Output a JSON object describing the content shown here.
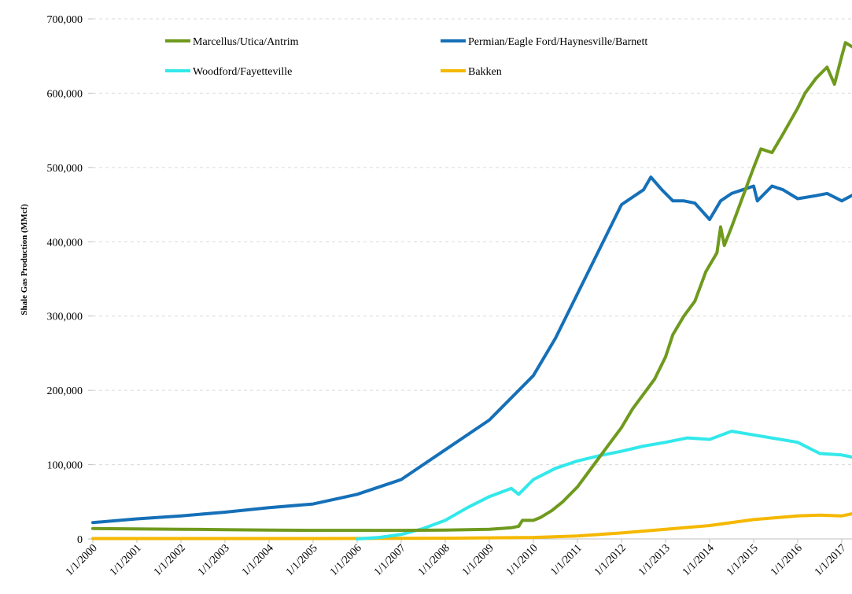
{
  "chart_data": {
    "type": "line",
    "title": "",
    "xlabel": "",
    "ylabel": "Shale Gas Production  (MMcf)",
    "ylim": [
      0,
      700000
    ],
    "yticks": [
      0,
      100000,
      200000,
      300000,
      400000,
      500000,
      600000,
      700000
    ],
    "ytick_labels": [
      "0",
      "100,000",
      "200,000",
      "300,000",
      "400,000",
      "500,000",
      "600,000",
      "700,000"
    ],
    "xlim": [
      "2000-01",
      "2017-04"
    ],
    "xticks": [
      "2000-01",
      "2001-01",
      "2002-01",
      "2003-01",
      "2004-01",
      "2005-01",
      "2006-01",
      "2007-01",
      "2008-01",
      "2009-01",
      "2010-01",
      "2011-01",
      "2012-01",
      "2013-01",
      "2014-01",
      "2015-01",
      "2016-01",
      "2017-01"
    ],
    "xtick_labels": [
      "1/1/2000",
      "1/1/2001",
      "1/1/2002",
      "1/1/2003",
      "1/1/2004",
      "1/1/2005",
      "1/1/2006",
      "1/1/2007",
      "1/1/2008",
      "1/1/2009",
      "1/1/2010",
      "1/1/2011",
      "1/1/2012",
      "1/1/2013",
      "1/1/2014",
      "1/1/2015",
      "1/1/2016",
      "1/1/2017"
    ],
    "grid": "horizontal dashed",
    "legend_placement": "top",
    "series": [
      {
        "name": "Marcellus/Utica/Antrim",
        "color": "#6f9a1e",
        "points": [
          [
            "2000-01",
            14000
          ],
          [
            "2002-01",
            13000
          ],
          [
            "2003-01",
            12500
          ],
          [
            "2004-01",
            12000
          ],
          [
            "2005-01",
            11500
          ],
          [
            "2006-01",
            11500
          ],
          [
            "2007-01",
            11500
          ],
          [
            "2008-01",
            12000
          ],
          [
            "2009-01",
            13000
          ],
          [
            "2009-07",
            15000
          ],
          [
            "2009-09",
            17000
          ],
          [
            "2009-10",
            25000
          ],
          [
            "2010-01",
            25000
          ],
          [
            "2010-03",
            29000
          ],
          [
            "2010-06",
            38000
          ],
          [
            "2010-09",
            50000
          ],
          [
            "2011-01",
            70000
          ],
          [
            "2011-04",
            90000
          ],
          [
            "2011-07",
            110000
          ],
          [
            "2011-10",
            130000
          ],
          [
            "2012-01",
            150000
          ],
          [
            "2012-04",
            175000
          ],
          [
            "2012-07",
            195000
          ],
          [
            "2012-10",
            215000
          ],
          [
            "2013-01",
            245000
          ],
          [
            "2013-03",
            275000
          ],
          [
            "2013-06",
            300000
          ],
          [
            "2013-09",
            320000
          ],
          [
            "2013-12",
            360000
          ],
          [
            "2014-03",
            385000
          ],
          [
            "2014-04",
            420000
          ],
          [
            "2014-05",
            395000
          ],
          [
            "2014-07",
            420000
          ],
          [
            "2014-10",
            460000
          ],
          [
            "2015-01",
            500000
          ],
          [
            "2015-03",
            525000
          ],
          [
            "2015-06",
            520000
          ],
          [
            "2015-09",
            545000
          ],
          [
            "2016-01",
            580000
          ],
          [
            "2016-03",
            600000
          ],
          [
            "2016-06",
            620000
          ],
          [
            "2016-09",
            635000
          ],
          [
            "2016-11",
            612000
          ],
          [
            "2017-01",
            650000
          ],
          [
            "2017-02",
            668000
          ],
          [
            "2017-04",
            662000
          ]
        ]
      },
      {
        "name": "Permian/Eagle Ford/Haynesville/Barnett",
        "color": "#1570b8",
        "points": [
          [
            "2000-01",
            22000
          ],
          [
            "2001-01",
            27000
          ],
          [
            "2002-01",
            31000
          ],
          [
            "2003-01",
            36000
          ],
          [
            "2004-01",
            42000
          ],
          [
            "2005-01",
            47000
          ],
          [
            "2006-01",
            60000
          ],
          [
            "2007-01",
            80000
          ],
          [
            "2008-01",
            120000
          ],
          [
            "2009-01",
            160000
          ],
          [
            "2009-07",
            190000
          ],
          [
            "2010-01",
            220000
          ],
          [
            "2010-07",
            270000
          ],
          [
            "2011-01",
            330000
          ],
          [
            "2011-07",
            390000
          ],
          [
            "2012-01",
            450000
          ],
          [
            "2012-04",
            460000
          ],
          [
            "2012-07",
            470000
          ],
          [
            "2012-09",
            487000
          ],
          [
            "2012-12",
            470000
          ],
          [
            "2013-03",
            455000
          ],
          [
            "2013-06",
            455000
          ],
          [
            "2013-09",
            452000
          ],
          [
            "2014-01",
            430000
          ],
          [
            "2014-04",
            455000
          ],
          [
            "2014-07",
            465000
          ],
          [
            "2014-10",
            470000
          ],
          [
            "2015-01",
            475000
          ],
          [
            "2015-02",
            455000
          ],
          [
            "2015-06",
            475000
          ],
          [
            "2015-09",
            470000
          ],
          [
            "2016-01",
            458000
          ],
          [
            "2016-06",
            462000
          ],
          [
            "2016-09",
            465000
          ],
          [
            "2017-01",
            455000
          ],
          [
            "2017-04",
            463000
          ]
        ]
      },
      {
        "name": "Woodford/Fayetteville",
        "color": "#33e8ea",
        "points": [
          [
            "2006-01",
            0
          ],
          [
            "2006-07",
            2000
          ],
          [
            "2007-01",
            6000
          ],
          [
            "2007-07",
            14000
          ],
          [
            "2008-01",
            25000
          ],
          [
            "2008-07",
            42000
          ],
          [
            "2009-01",
            57000
          ],
          [
            "2009-07",
            68000
          ],
          [
            "2009-09",
            60000
          ],
          [
            "2010-01",
            80000
          ],
          [
            "2010-07",
            95000
          ],
          [
            "2011-01",
            105000
          ],
          [
            "2011-07",
            112000
          ],
          [
            "2012-01",
            118000
          ],
          [
            "2012-07",
            125000
          ],
          [
            "2013-01",
            130000
          ],
          [
            "2013-07",
            136000
          ],
          [
            "2014-01",
            134000
          ],
          [
            "2014-07",
            145000
          ],
          [
            "2015-01",
            140000
          ],
          [
            "2015-07",
            135000
          ],
          [
            "2016-01",
            130000
          ],
          [
            "2016-07",
            115000
          ],
          [
            "2017-01",
            113000
          ],
          [
            "2017-04",
            110000
          ]
        ]
      },
      {
        "name": "Bakken",
        "color": "#f5b800",
        "points": [
          [
            "2000-01",
            500
          ],
          [
            "2005-01",
            500
          ],
          [
            "2008-01",
            1000
          ],
          [
            "2009-01",
            1500
          ],
          [
            "2010-01",
            2000
          ],
          [
            "2011-01",
            4000
          ],
          [
            "2012-01",
            8000
          ],
          [
            "2013-01",
            13000
          ],
          [
            "2014-01",
            18000
          ],
          [
            "2015-01",
            26000
          ],
          [
            "2016-01",
            31000
          ],
          [
            "2016-07",
            32000
          ],
          [
            "2017-01",
            31000
          ],
          [
            "2017-04",
            34000
          ]
        ]
      }
    ]
  }
}
